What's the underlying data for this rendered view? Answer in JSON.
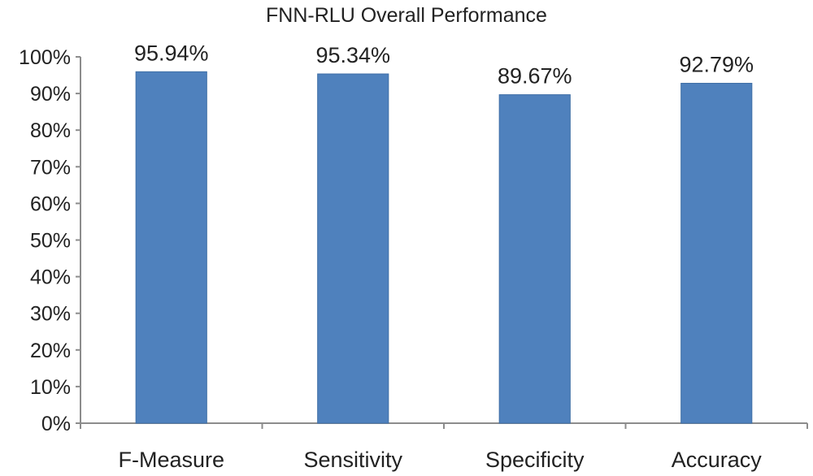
{
  "chart_data": {
    "type": "bar",
    "title": "FNN-RLU Overall Performance",
    "categories": [
      "F-Measure",
      "Sensitivity",
      "Specificity",
      "Accuracy"
    ],
    "values": [
      95.94,
      95.34,
      89.67,
      92.79
    ],
    "data_labels": [
      "95.94%",
      "95.34%",
      "89.67%",
      "92.79%"
    ],
    "y_ticks": [
      0,
      10,
      20,
      30,
      40,
      50,
      60,
      70,
      80,
      90,
      100
    ],
    "y_tick_labels": [
      "0%",
      "10%",
      "20%",
      "30%",
      "40%",
      "50%",
      "60%",
      "70%",
      "80%",
      "90%",
      "100%"
    ],
    "ylim": [
      0,
      100
    ],
    "xlabel": "",
    "ylabel": "",
    "grid": false,
    "legend": "none",
    "bar_color": "#4f81bd"
  }
}
